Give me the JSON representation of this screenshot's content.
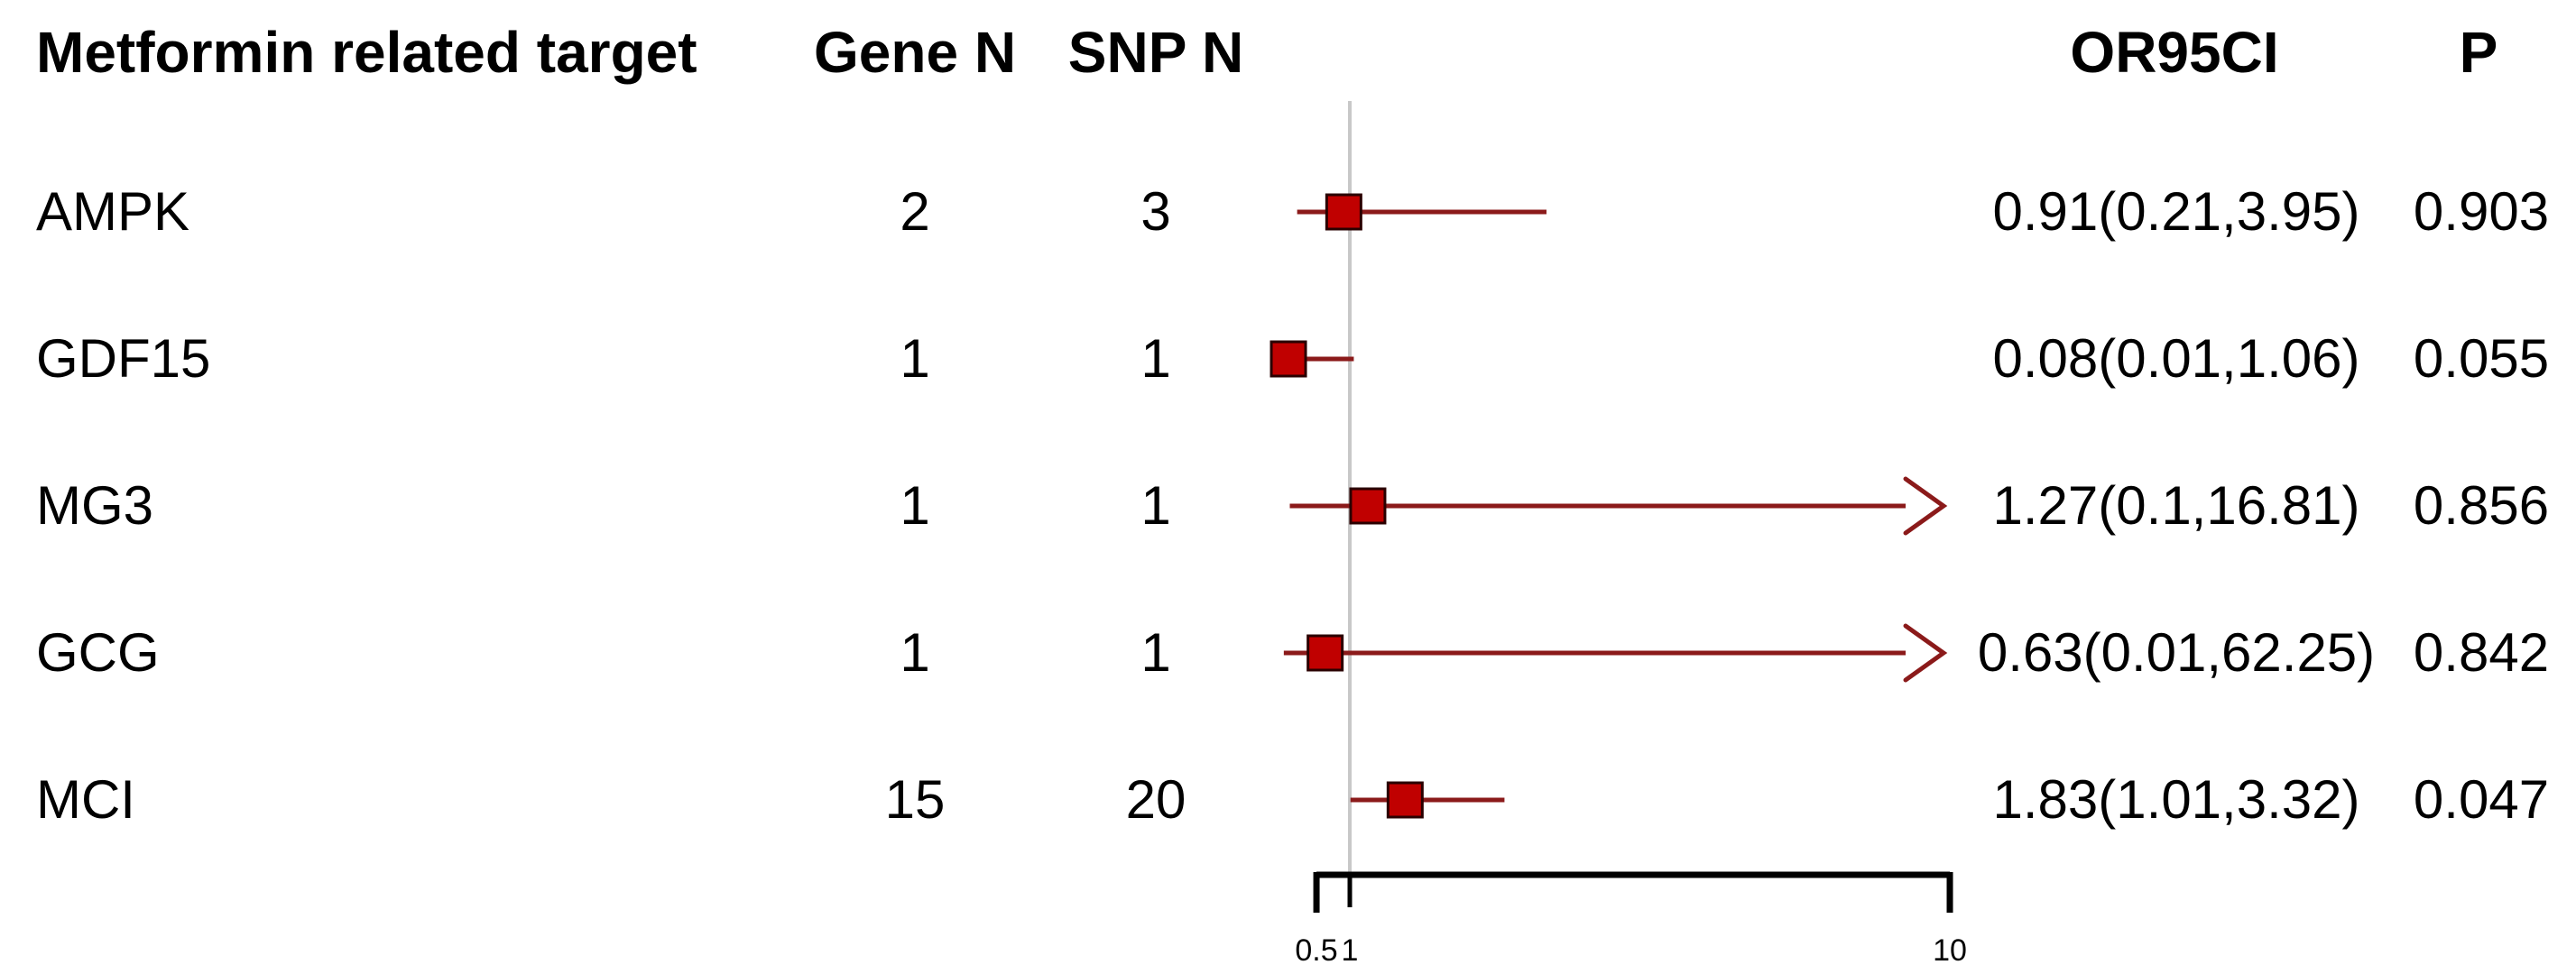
{
  "header": {
    "target": "Metformin related target",
    "gene_n": "Gene N",
    "snp_n": "SNP N",
    "or_ci": "OR95CI",
    "p": "P"
  },
  "rows": [
    {
      "target": "AMPK",
      "gene_n": "2",
      "snp_n": "3",
      "or_ci": "0.91(0.21,3.95)",
      "p": "0.903"
    },
    {
      "target": "GDF15",
      "gene_n": "1",
      "snp_n": "1",
      "or_ci": "0.08(0.01,1.06)",
      "p": "0.055"
    },
    {
      "target": "MG3",
      "gene_n": "1",
      "snp_n": "1",
      "or_ci": "1.27(0.1,16.81)",
      "p": "0.856"
    },
    {
      "target": "GCG",
      "gene_n": "1",
      "snp_n": "1",
      "or_ci": "0.63(0.01,62.25)",
      "p": "0.842"
    },
    {
      "target": "MCI",
      "gene_n": "15",
      "snp_n": "20",
      "or_ci": "1.83(1.01,3.32)",
      "p": "0.047"
    }
  ],
  "chart_data": {
    "type": "forest",
    "scale": "linear",
    "title": "Metformin related target",
    "x_axis": {
      "range": [
        0.5,
        10
      ],
      "ticks": [
        0.5,
        1,
        10
      ],
      "tick_labels": [
        "0.5",
        "1",
        "10"
      ]
    },
    "reference_line": 1,
    "series": [
      {
        "label": "AMPK",
        "or": 0.91,
        "ci_low": 0.21,
        "ci_high": 3.95,
        "clipped_high": false
      },
      {
        "label": "GDF15",
        "or": 0.08,
        "ci_low": 0.01,
        "ci_high": 1.06,
        "clipped_high": false
      },
      {
        "label": "MG3",
        "or": 1.27,
        "ci_low": 0.1,
        "ci_high": 16.81,
        "clipped_high": true
      },
      {
        "label": "GCG",
        "or": 0.63,
        "ci_low": 0.01,
        "ci_high": 62.25,
        "clipped_high": true
      },
      {
        "label": "MCI",
        "or": 1.83,
        "ci_low": 1.01,
        "ci_high": 3.32,
        "clipped_high": false
      }
    ],
    "colors": {
      "marker": "#c00000",
      "marker_border": "#2a0000",
      "ci_line": "#8b1a1a",
      "reference_line": "#c8c8c8",
      "axis": "#000000",
      "text": "#000000"
    }
  }
}
